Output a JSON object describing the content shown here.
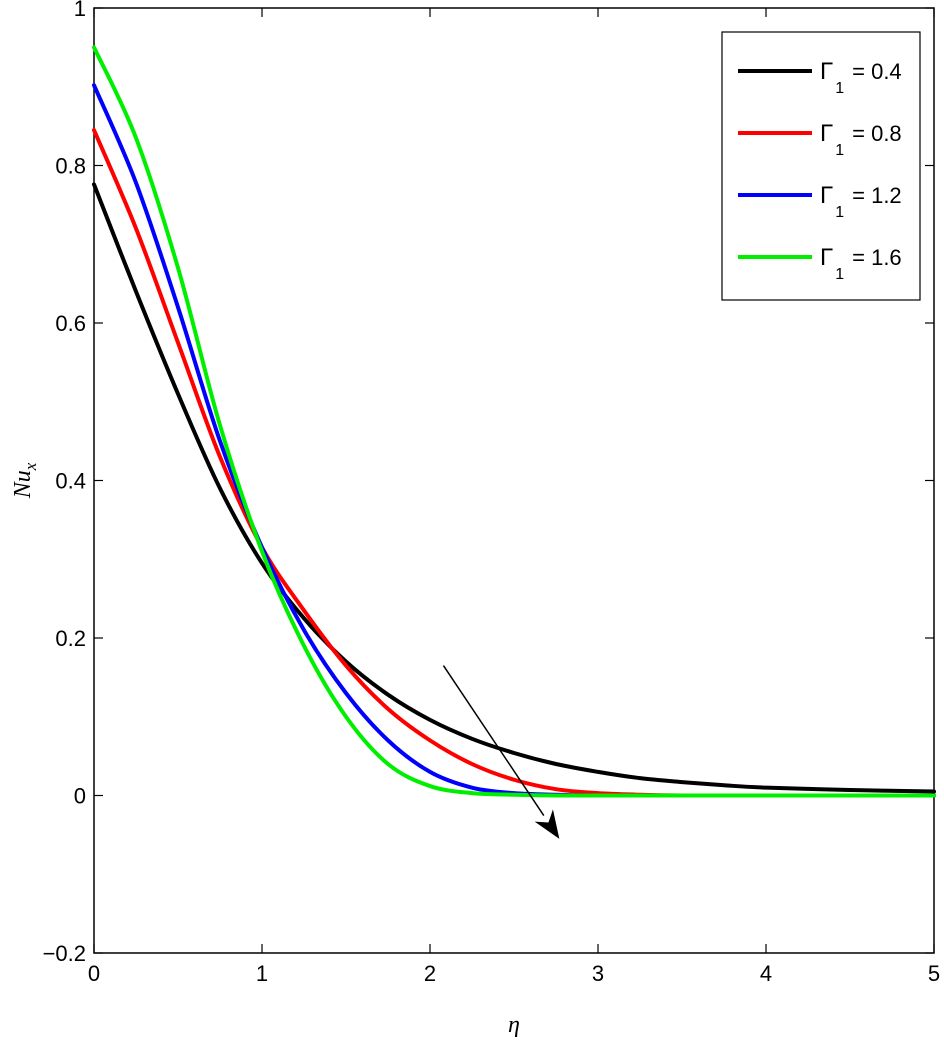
{
  "chart_data": {
    "type": "line",
    "xlabel": "η",
    "ylabel": "Nu_x",
    "xlim": [
      0,
      5
    ],
    "ylim": [
      -0.2,
      1
    ],
    "x_ticks": [
      "0",
      "1",
      "2",
      "3",
      "4",
      "5"
    ],
    "y_ticks": [
      "−0.2",
      "0",
      "0.2",
      "0.4",
      "0.6",
      "0.8",
      "1"
    ],
    "grid": false,
    "legend_position": "top-right",
    "x": [
      0,
      0.25,
      0.5,
      0.75,
      1.0,
      1.25,
      1.5,
      1.75,
      2.0,
      2.25,
      2.5,
      2.75,
      3.0,
      3.25,
      3.5,
      3.75,
      4.0,
      4.5,
      5.0
    ],
    "series": [
      {
        "name": "Γ₁ = 0.4",
        "legend_symbol": "Γ",
        "legend_subscript": "1",
        "legend_value": "= 0.4",
        "color": "#000000",
        "values": [
          0.776,
          0.64,
          0.51,
          0.39,
          0.295,
          0.225,
          0.17,
          0.128,
          0.096,
          0.072,
          0.054,
          0.04,
          0.03,
          0.022,
          0.017,
          0.013,
          0.01,
          0.007,
          0.005
        ]
      },
      {
        "name": "Γ₁ = 0.8",
        "legend_symbol": "Γ",
        "legend_subscript": "1",
        "legend_value": "= 0.8",
        "color": "#ff0000",
        "values": [
          0.845,
          0.72,
          0.575,
          0.43,
          0.315,
          0.235,
          0.165,
          0.11,
          0.07,
          0.04,
          0.02,
          0.008,
          0.003,
          0.001,
          0.0,
          0.0,
          0.0,
          0.0,
          0.0
        ]
      },
      {
        "name": "Γ₁ = 1.2",
        "legend_symbol": "Γ",
        "legend_subscript": "1",
        "legend_value": "= 1.2",
        "color": "#0000ff",
        "values": [
          0.902,
          0.778,
          0.62,
          0.45,
          0.315,
          0.21,
          0.13,
          0.07,
          0.03,
          0.01,
          0.003,
          0.001,
          0.0,
          0.0,
          0.0,
          0.0,
          0.0,
          0.0,
          0.0
        ]
      },
      {
        "name": "Γ₁ = 1.6",
        "legend_symbol": "Γ",
        "legend_subscript": "1",
        "legend_value": "= 1.6",
        "color": "#00ee00",
        "values": [
          0.95,
          0.835,
          0.67,
          0.47,
          0.31,
          0.19,
          0.1,
          0.04,
          0.012,
          0.003,
          0.001,
          0.0,
          0.0,
          0.0,
          0.0,
          0.0,
          0.0,
          0.0,
          0.0
        ]
      }
    ],
    "annotation_arrow": {
      "from": [
        2.08,
        0.165
      ],
      "to": [
        2.77,
        -0.055
      ],
      "meaning": "increasing Γ₁"
    }
  }
}
